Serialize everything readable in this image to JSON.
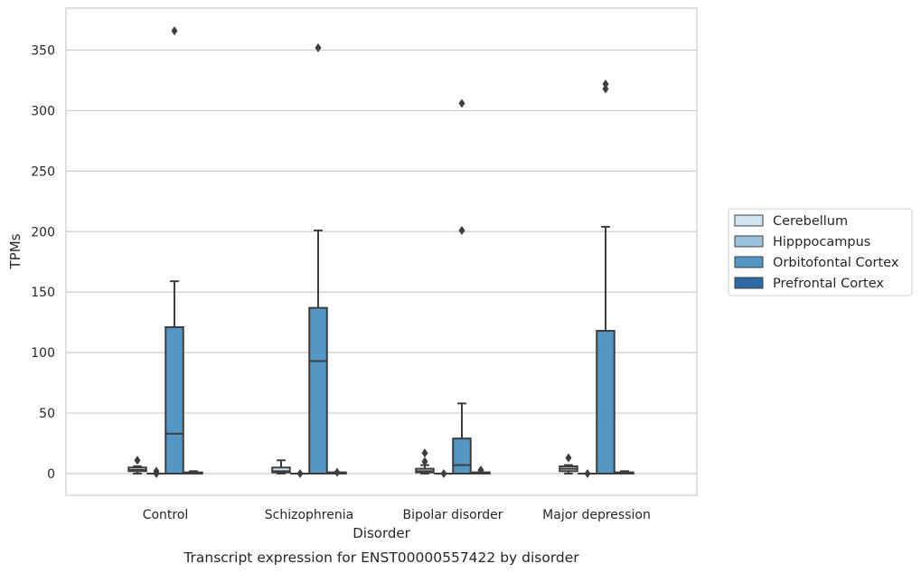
{
  "chart_data": {
    "type": "box",
    "title": "",
    "caption": "Transcript expression for ENST00000557422 by disorder",
    "xlabel": "Disorder",
    "ylabel": "TPMs",
    "ylim": [
      -18,
      385
    ],
    "yticks": [
      0,
      50,
      100,
      150,
      200,
      250,
      300,
      350
    ],
    "grid": "horizontal",
    "legend_position": "right",
    "categories": [
      "Control",
      "Schizophrenia",
      "Bipolar disorder",
      "Major depression"
    ],
    "series": [
      {
        "name": "Cerebellum",
        "color": "#d2e3f2",
        "boxes": [
          {
            "whisker_low": 0,
            "q1": 2,
            "median": 3,
            "q3": 5,
            "whisker_high": 6,
            "outliers": [
              11
            ]
          },
          {
            "whisker_low": 0,
            "q1": 1,
            "median": 2,
            "q3": 5,
            "whisker_high": 11,
            "outliers": []
          },
          {
            "whisker_low": 0,
            "q1": 1,
            "median": 2,
            "q3": 4,
            "whisker_high": 7,
            "outliers": [
              10,
              17
            ]
          },
          {
            "whisker_low": 0,
            "q1": 2,
            "median": 4,
            "q3": 6,
            "whisker_high": 7,
            "outliers": [
              13
            ]
          }
        ]
      },
      {
        "name": "Hipppocampus",
        "color": "#9bc3de",
        "boxes": [
          {
            "whisker_low": 0,
            "q1": 0,
            "median": 0,
            "q3": 0,
            "whisker_high": 0,
            "outliers": [
              2,
              0
            ]
          },
          {
            "whisker_low": 0,
            "q1": 0,
            "median": 0,
            "q3": 0,
            "whisker_high": 0,
            "outliers": [
              0
            ]
          },
          {
            "whisker_low": 0,
            "q1": 0,
            "median": 0,
            "q3": 0,
            "whisker_high": 0,
            "outliers": [
              0
            ]
          },
          {
            "whisker_low": 0,
            "q1": 0,
            "median": 0,
            "q3": 0,
            "whisker_high": 0,
            "outliers": [
              0
            ]
          }
        ]
      },
      {
        "name": "Orbitofontal Cortex",
        "color": "#5496c4",
        "boxes": [
          {
            "whisker_low": 0,
            "q1": 0,
            "median": 33,
            "q3": 121,
            "whisker_high": 159,
            "outliers": [
              366
            ]
          },
          {
            "whisker_low": 0,
            "q1": 0,
            "median": 93,
            "q3": 137,
            "whisker_high": 201,
            "outliers": [
              352
            ]
          },
          {
            "whisker_low": 0,
            "q1": 0,
            "median": 7,
            "q3": 29,
            "whisker_high": 58,
            "outliers": [
              201,
              306
            ]
          },
          {
            "whisker_low": 0,
            "q1": 0,
            "median": 0,
            "q3": 118,
            "whisker_high": 204,
            "outliers": [
              318,
              322
            ]
          }
        ]
      },
      {
        "name": "Prefrontal Cortex",
        "color": "#2c69a5",
        "boxes": [
          {
            "whisker_low": 0,
            "q1": 0,
            "median": 0,
            "q3": 1,
            "whisker_high": 2,
            "outliers": []
          },
          {
            "whisker_low": 0,
            "q1": 0,
            "median": 0,
            "q3": 1,
            "whisker_high": 1,
            "outliers": [
              1
            ]
          },
          {
            "whisker_low": 0,
            "q1": 0,
            "median": 0,
            "q3": 1,
            "whisker_high": 1,
            "outliers": [
              3
            ]
          },
          {
            "whisker_low": 0,
            "q1": 0,
            "median": 0,
            "q3": 1,
            "whisker_high": 2,
            "outliers": []
          }
        ]
      }
    ]
  }
}
